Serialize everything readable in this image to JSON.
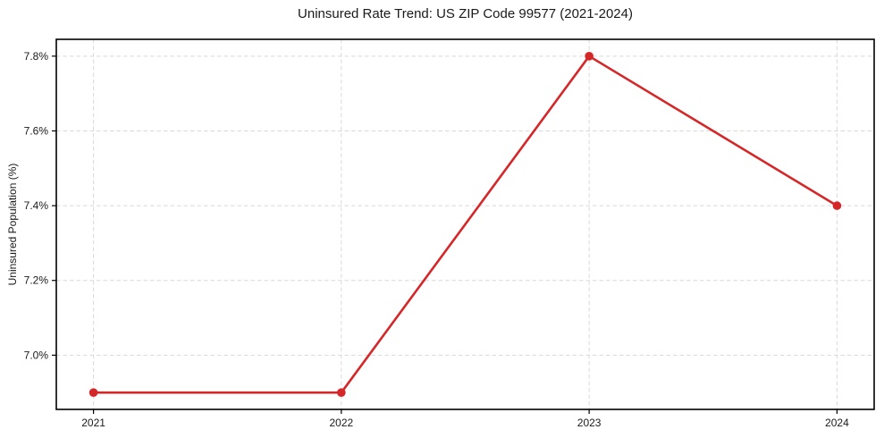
{
  "chart_data": {
    "type": "line",
    "title": "Uninsured Rate Trend: US ZIP Code 99577 (2021-2024)",
    "xlabel": "",
    "ylabel": "Uninsured Population (%)",
    "categories": [
      "2021",
      "2022",
      "2023",
      "2024"
    ],
    "values": [
      6.9,
      6.9,
      7.8,
      7.4
    ],
    "ylim": [
      6.855,
      7.845
    ],
    "yticks": [
      7.0,
      7.2,
      7.4,
      7.6,
      7.8
    ],
    "ytick_labels": [
      "7.0%",
      "7.2%",
      "7.4%",
      "7.6%",
      "7.8%"
    ],
    "grid": true,
    "grid_style": "dashed",
    "legend": "none",
    "line_color": "#d62728",
    "marker": "circle",
    "grid_color": "#d9d9d9",
    "spine_color": "#000000",
    "background_color": "#ffffff"
  }
}
